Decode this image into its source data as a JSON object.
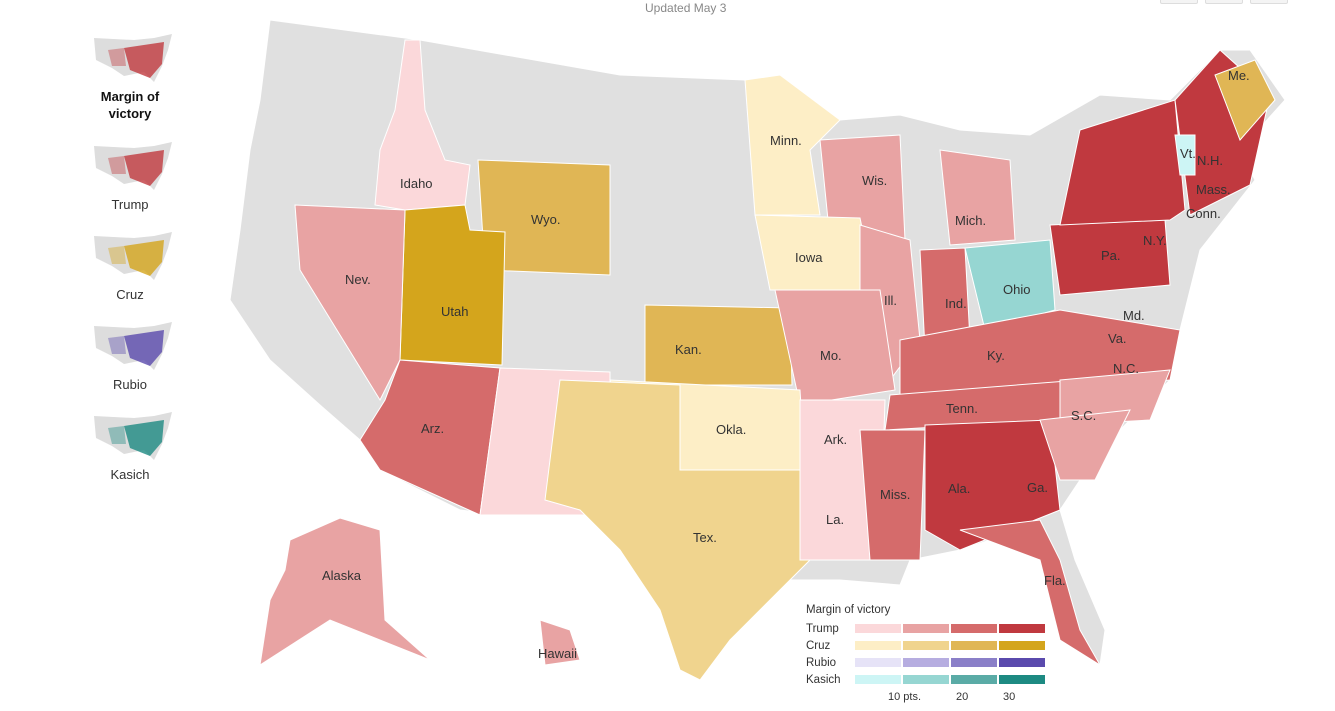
{
  "header": {
    "updated": "Updated May 3"
  },
  "sidebar": [
    {
      "label": "Margin of victory",
      "active": true,
      "color": "#c0393f"
    },
    {
      "label": "Trump",
      "color": "#c0393f"
    },
    {
      "label": "Cruz",
      "color": "#d4a51c"
    },
    {
      "label": "Rubio",
      "color": "#5a4aad"
    },
    {
      "label": "Kasich",
      "color": "#1d8a82"
    }
  ],
  "map": {
    "labels": [
      "Minn.",
      "Me.",
      "Vt.",
      "N.H.",
      "Mass.",
      "N.Y.",
      "Conn.",
      "Wis.",
      "Mich.",
      "Idaho",
      "Wyo.",
      "Nev.",
      "Utah",
      "Iowa",
      "Pa.",
      "Ohio",
      "Ind.",
      "Ill.",
      "Md.",
      "Kan.",
      "Mo.",
      "Ky.",
      "Va.",
      "Tenn.",
      "N.C.",
      "Okla.",
      "Ark.",
      "S.C.",
      "Arz.",
      "Miss.",
      "Ala.",
      "Ga.",
      "Tex.",
      "La.",
      "Fla.",
      "Alaska",
      "Hawaii"
    ],
    "colors": {
      "none": "#e0e0e0",
      "Trump": [
        "#fbd8da",
        "#e8a3a3",
        "#d56b6b",
        "#c0393f"
      ],
      "Cruz": [
        "#fdeec6",
        "#f0d48e",
        "#e0b655",
        "#d4a51c"
      ],
      "Rubio": [
        "#e6e3f7",
        "#b6ade0",
        "#8a7fc8",
        "#5a4aad"
      ],
      "Kasich": [
        "#cdf5f5",
        "#96d6d2",
        "#5aaba6",
        "#1d8a82"
      ],
      "Carson": "#a8d8a0"
    }
  },
  "legend": {
    "title": "Margin of victory",
    "rows": [
      "Trump",
      "Cruz",
      "Rubio",
      "Kasich"
    ],
    "ticks": [
      "10 pts.",
      "20",
      "30"
    ]
  }
}
